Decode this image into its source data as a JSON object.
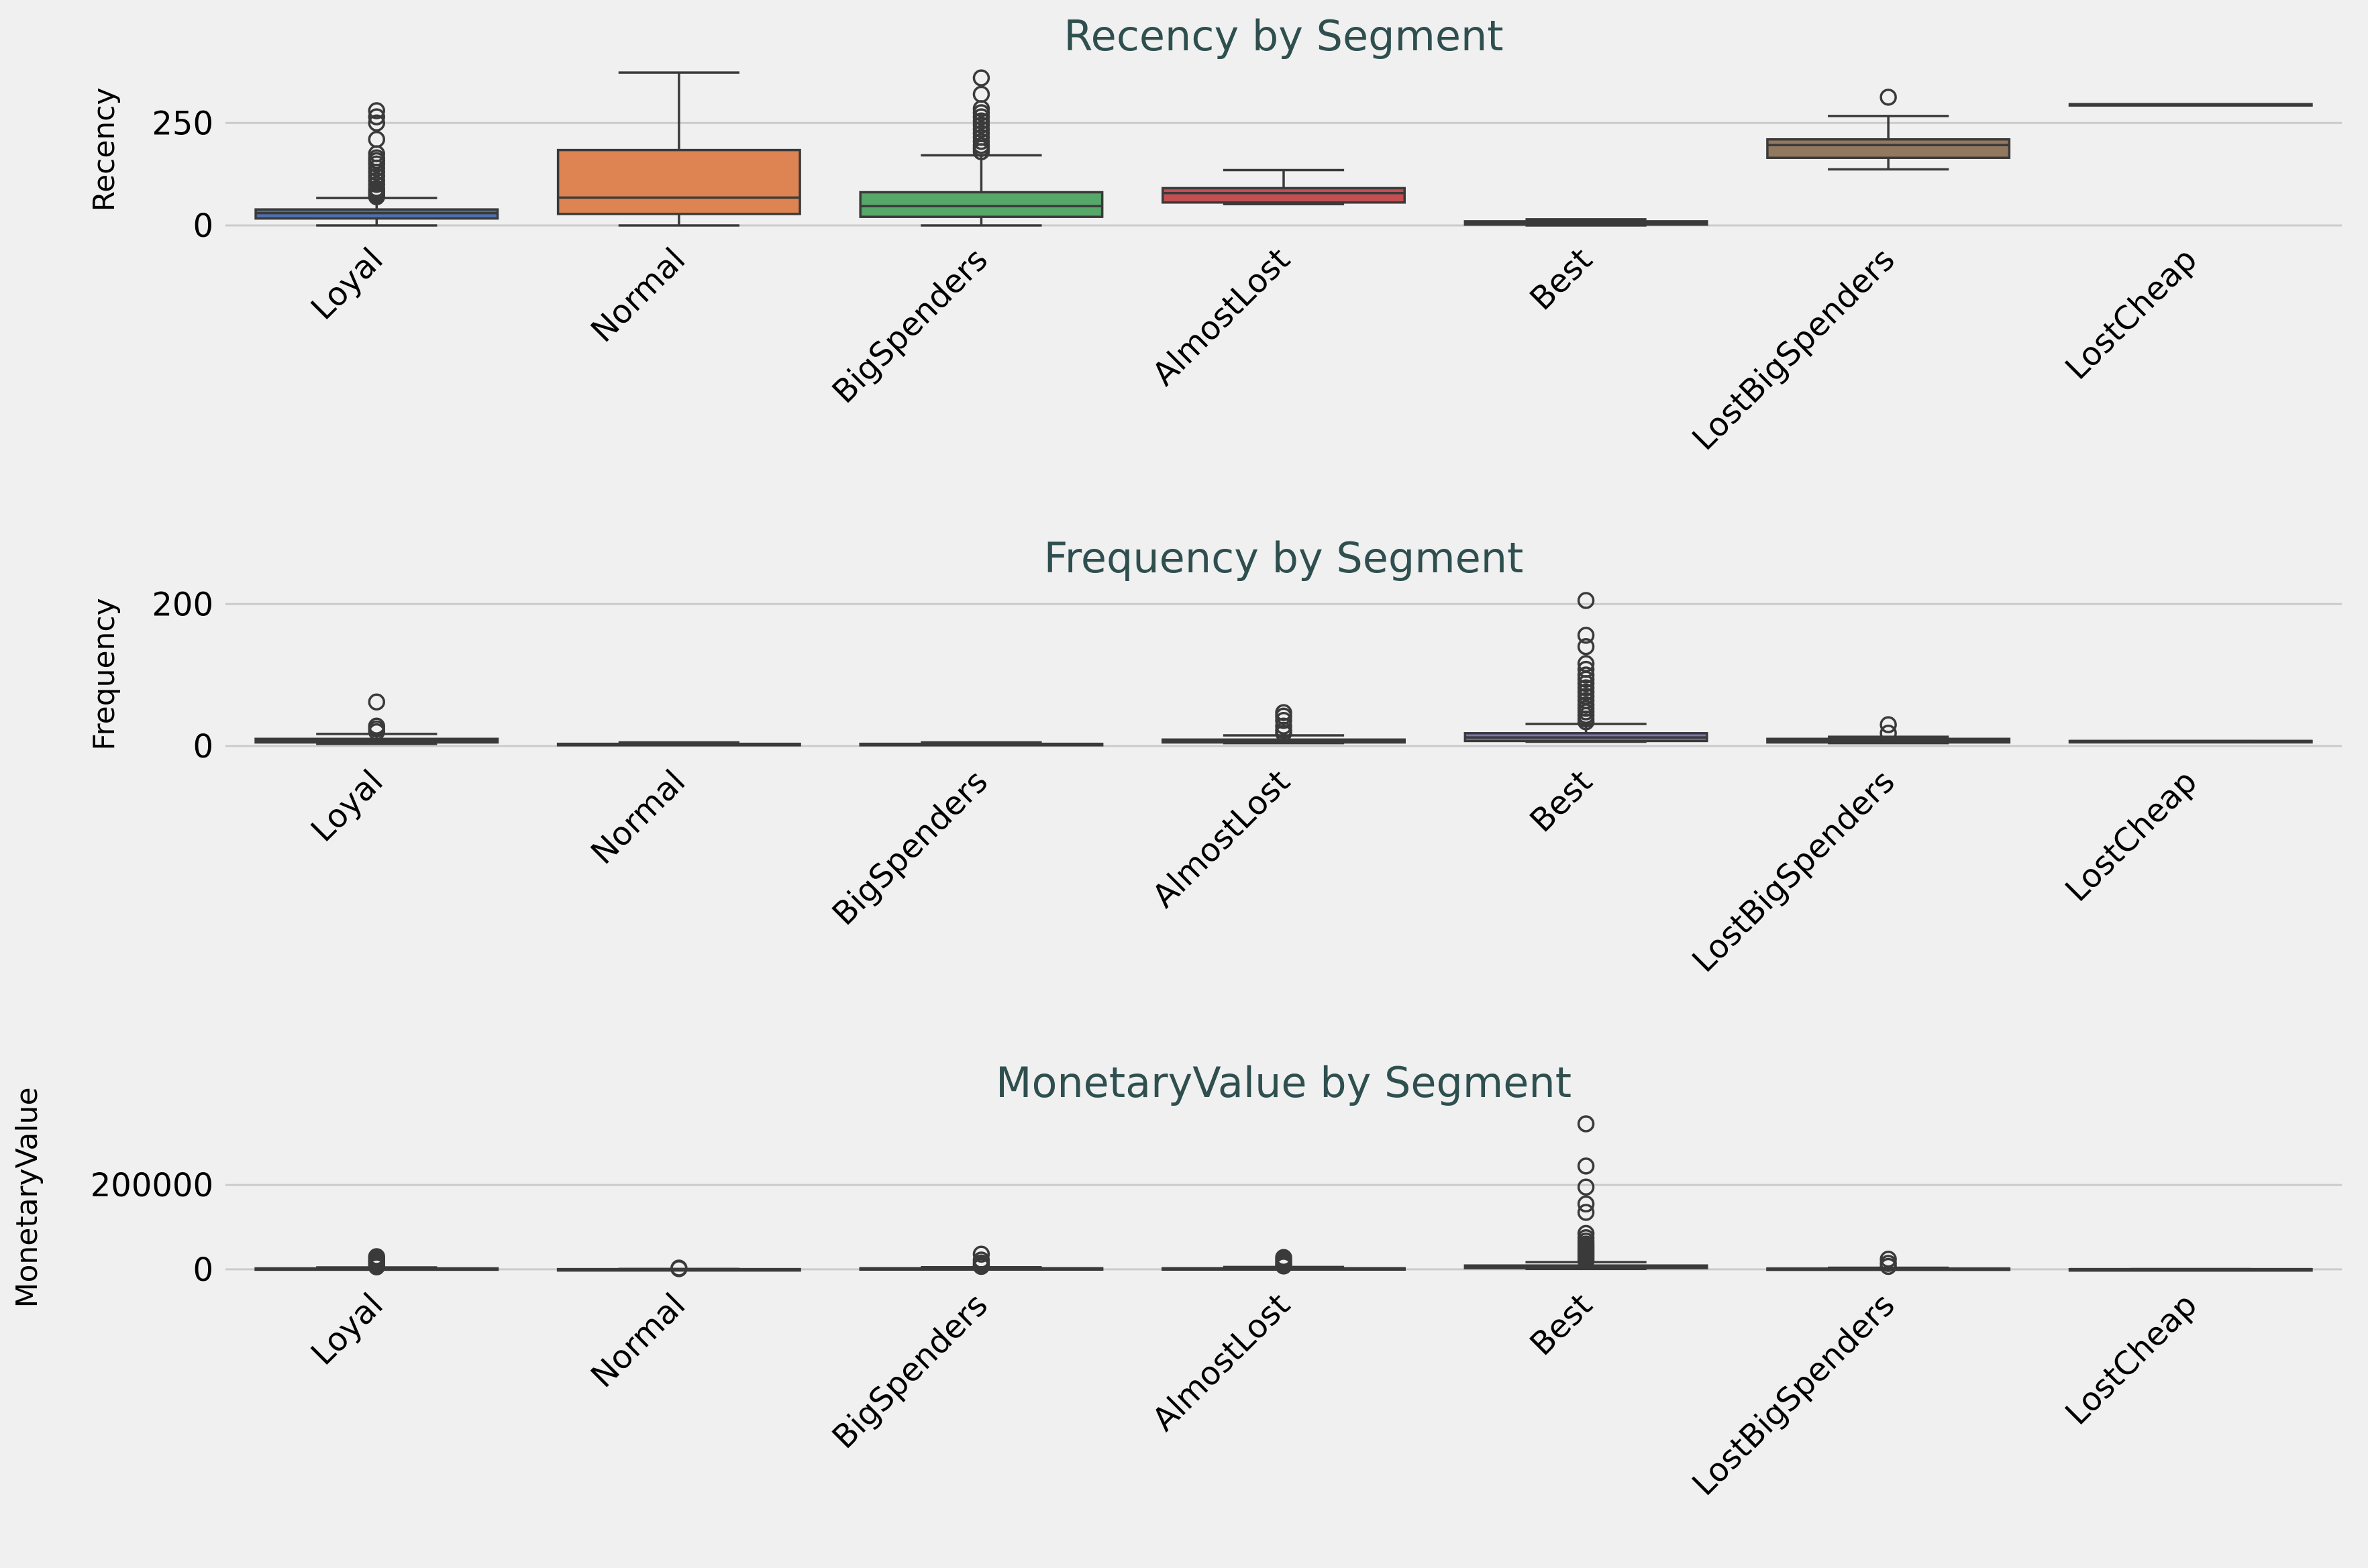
{
  "chart_data": [
    {
      "type": "box",
      "title": "Recency by Segment",
      "ylabel": "Recency",
      "xlabel": "",
      "ylim": [
        0,
        370
      ],
      "yticks": [
        0,
        250
      ],
      "ytick_labels": [
        "0",
        "250"
      ],
      "grid": true,
      "categories": [
        "Loyal",
        "Normal",
        "BigSpenders",
        "AlmostLost",
        "Best",
        "LostBigSpenders",
        "LostCheap"
      ],
      "colors": [
        "#4c72b0",
        "#dd8452",
        "#55a868",
        "#c44e52",
        "#8172b3",
        "#937860",
        "#da8bc3"
      ],
      "boxes": [
        {
          "whislo": 0,
          "q1": 17,
          "med": 30,
          "q3": 39,
          "whishi": 67,
          "fliers": [
            70,
            75,
            80,
            85,
            90,
            100,
            110,
            120,
            130,
            140,
            150,
            158,
            165,
            175,
            210,
            250,
            265,
            280
          ]
        },
        {
          "whislo": 0,
          "q1": 28,
          "med": 68,
          "q3": 184,
          "whishi": 373,
          "fliers": []
        },
        {
          "whislo": 0,
          "q1": 21,
          "med": 47,
          "q3": 81,
          "whishi": 171,
          "fliers": [
            180,
            188,
            195,
            205,
            215,
            225,
            235,
            245,
            255,
            265,
            275,
            285,
            320,
            360
          ]
        },
        {
          "whislo": 52,
          "q1": 56,
          "med": 79,
          "q3": 91,
          "whishi": 135,
          "fliers": []
        },
        {
          "whislo": 0,
          "q1": 2,
          "med": 5,
          "q3": 10,
          "whishi": 15,
          "fliers": []
        },
        {
          "whislo": 137,
          "q1": 165,
          "med": 196,
          "q3": 210,
          "whishi": 267,
          "fliers": [
            313
          ]
        },
        {
          "whislo": 296,
          "q1": 296,
          "med": 296,
          "q3": 296,
          "whishi": 296,
          "fliers": []
        }
      ]
    },
    {
      "type": "box",
      "title": "Frequency by Segment",
      "ylabel": "Frequency",
      "xlabel": "",
      "ylim": [
        -3,
        205
      ],
      "yticks": [
        0,
        200
      ],
      "ytick_labels": [
        "0",
        "200"
      ],
      "grid": true,
      "categories": [
        "Loyal",
        "Normal",
        "BigSpenders",
        "AlmostLost",
        "Best",
        "LostBigSpenders",
        "LostCheap"
      ],
      "colors": [
        "#4c72b0",
        "#dd8452",
        "#55a868",
        "#c44e52",
        "#8172b3",
        "#937860",
        "#da8bc3"
      ],
      "boxes": [
        {
          "whislo": 3,
          "q1": 5,
          "med": 7,
          "q3": 10,
          "whishi": 17,
          "fliers": [
            20,
            24,
            28,
            62
          ]
        },
        {
          "whislo": 1,
          "q1": 1,
          "med": 2,
          "q3": 3,
          "whishi": 5,
          "fliers": []
        },
        {
          "whislo": 1,
          "q1": 1,
          "med": 1,
          "q3": 3,
          "whishi": 5,
          "fliers": []
        },
        {
          "whislo": 4,
          "q1": 5,
          "med": 7,
          "q3": 9,
          "whishi": 15,
          "fliers": [
            18,
            22,
            28,
            36,
            42,
            47
          ]
        },
        {
          "whislo": 6,
          "q1": 7,
          "med": 12,
          "q3": 18,
          "whishi": 31,
          "fliers": [
            34,
            38,
            43,
            48,
            53,
            58,
            64,
            70,
            76,
            82,
            88,
            94,
            100,
            108,
            116,
            140,
            156,
            205
          ]
        },
        {
          "whislo": 4,
          "q1": 5,
          "med": 7,
          "q3": 10,
          "whishi": 13,
          "fliers": [
            18,
            30
          ]
        },
        {
          "whislo": 7,
          "q1": 7,
          "med": 7,
          "q3": 7,
          "whishi": 7,
          "fliers": []
        }
      ]
    },
    {
      "type": "box",
      "title": "MonetaryValue by Segment",
      "ylabel": "MonetaryValue",
      "xlabel": "",
      "ylim": [
        -5000,
        345000
      ],
      "yticks": [
        0,
        200000
      ],
      "ytick_labels": [
        "0",
        "200000"
      ],
      "grid": true,
      "categories": [
        "Loyal",
        "Normal",
        "BigSpenders",
        "AlmostLost",
        "Best",
        "LostBigSpenders",
        "LostCheap"
      ],
      "colors": [
        "#4c72b0",
        "#dd8452",
        "#55a868",
        "#c44e52",
        "#8172b3",
        "#937860",
        "#da8bc3"
      ],
      "boxes": [
        {
          "whislo": 0,
          "q1": 600,
          "med": 1200,
          "q3": 2300,
          "whishi": 4500,
          "fliers": [
            6000,
            9000,
            13000,
            17000,
            21000,
            26000,
            30000
          ]
        },
        {
          "whislo": 0,
          "q1": 100,
          "med": 250,
          "q3": 450,
          "whishi": 900,
          "fliers": [
            1500,
            3000
          ]
        },
        {
          "whislo": 300,
          "q1": 1000,
          "med": 1700,
          "q3": 2600,
          "whishi": 5000,
          "fliers": [
            7000,
            10000,
            15000,
            22000,
            36000
          ]
        },
        {
          "whislo": 200,
          "q1": 900,
          "med": 1500,
          "q3": 2600,
          "whishi": 5500,
          "fliers": [
            8000,
            12000,
            16000,
            20000,
            24000,
            28000
          ]
        },
        {
          "whislo": 1000,
          "q1": 3000,
          "med": 5000,
          "q3": 9000,
          "whishi": 17000,
          "fliers": [
            20000,
            25000,
            30000,
            35000,
            40000,
            45000,
            50000,
            55000,
            60000,
            67000,
            75000,
            85000,
            135000,
            155000,
            195000,
            245000,
            345000
          ]
        },
        {
          "whislo": 300,
          "q1": 800,
          "med": 1300,
          "q3": 2000,
          "whishi": 3800,
          "fliers": [
            7000,
            14000,
            24000
          ]
        },
        {
          "whislo": 300,
          "q1": 300,
          "med": 300,
          "q3": 300,
          "whishi": 300,
          "fliers": []
        }
      ]
    }
  ]
}
